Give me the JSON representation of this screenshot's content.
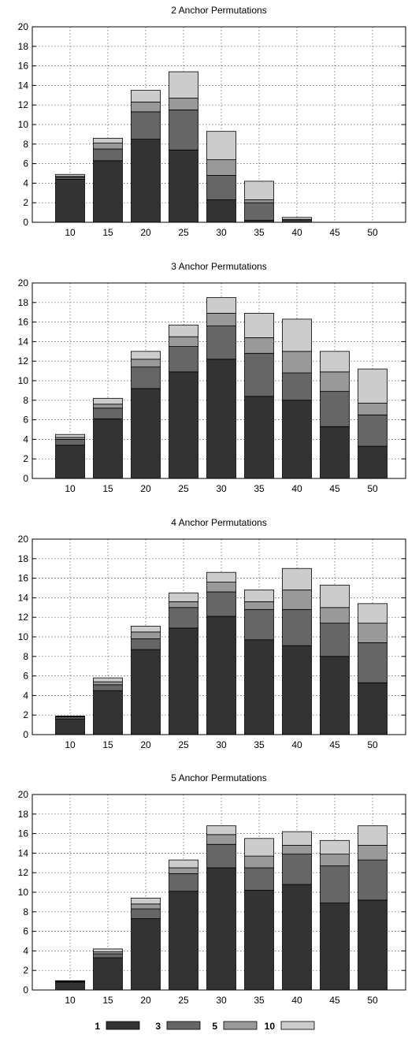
{
  "chart_data": [
    {
      "type": "bar",
      "stacked": true,
      "title": "2 Anchor Permutations",
      "categories": [
        "10",
        "15",
        "20",
        "25",
        "30",
        "35",
        "40",
        "45",
        "50"
      ],
      "ylim": [
        0,
        20
      ],
      "yticks": [
        "0",
        "2",
        "4",
        "6",
        "8",
        "10",
        "12",
        "14",
        "16",
        "18",
        "20"
      ],
      "grid": true,
      "series": [
        {
          "name": "1",
          "color": "#333333",
          "values": [
            4.4,
            6.3,
            8.5,
            7.4,
            2.3,
            0.2,
            0.05,
            0,
            0
          ]
        },
        {
          "name": "3",
          "color": "#666666",
          "values": [
            0.2,
            1.2,
            2.8,
            4.1,
            2.5,
            1.8,
            0.15,
            0,
            0
          ]
        },
        {
          "name": "5",
          "color": "#999999",
          "values": [
            0.1,
            0.6,
            1.0,
            1.2,
            1.6,
            0.3,
            0.1,
            0,
            0
          ]
        },
        {
          "name": "10",
          "color": "#cccccc",
          "values": [
            0.2,
            0.5,
            1.2,
            2.7,
            2.9,
            1.9,
            0.2,
            0,
            0
          ]
        }
      ]
    },
    {
      "type": "bar",
      "stacked": true,
      "title": "3 Anchor Permutations",
      "categories": [
        "10",
        "15",
        "20",
        "25",
        "30",
        "35",
        "40",
        "45",
        "50"
      ],
      "ylim": [
        0,
        20
      ],
      "yticks": [
        "0",
        "2",
        "4",
        "6",
        "8",
        "10",
        "12",
        "14",
        "16",
        "18",
        "20"
      ],
      "grid": true,
      "series": [
        {
          "name": "1",
          "color": "#333333",
          "values": [
            3.4,
            6.1,
            9.2,
            10.9,
            12.2,
            8.4,
            8.0,
            5.3,
            3.3
          ]
        },
        {
          "name": "3",
          "color": "#666666",
          "values": [
            0.6,
            1.1,
            2.2,
            2.6,
            3.4,
            4.4,
            2.8,
            3.6,
            3.2
          ]
        },
        {
          "name": "5",
          "color": "#999999",
          "values": [
            0.2,
            0.4,
            0.8,
            1.0,
            1.3,
            1.6,
            2.2,
            2.0,
            1.2
          ]
        },
        {
          "name": "10",
          "color": "#cccccc",
          "values": [
            0.3,
            0.6,
            0.8,
            1.2,
            1.6,
            2.5,
            3.3,
            2.1,
            3.5
          ]
        }
      ]
    },
    {
      "type": "bar",
      "stacked": true,
      "title": "4 Anchor Permutations",
      "categories": [
        "10",
        "15",
        "20",
        "25",
        "30",
        "35",
        "40",
        "45",
        "50"
      ],
      "ylim": [
        0,
        20
      ],
      "yticks": [
        "0",
        "2",
        "4",
        "6",
        "8",
        "10",
        "12",
        "14",
        "16",
        "18",
        "20"
      ],
      "grid": true,
      "series": [
        {
          "name": "1",
          "color": "#333333",
          "values": [
            1.6,
            4.5,
            8.7,
            10.9,
            12.1,
            9.7,
            9.1,
            8.0,
            5.3
          ]
        },
        {
          "name": "3",
          "color": "#666666",
          "values": [
            0.2,
            0.6,
            1.1,
            2.1,
            2.5,
            3.1,
            3.7,
            3.4,
            4.1
          ]
        },
        {
          "name": "5",
          "color": "#999999",
          "values": [
            0.05,
            0.3,
            0.7,
            0.6,
            1.0,
            0.8,
            2.0,
            1.6,
            2.0
          ]
        },
        {
          "name": "10",
          "color": "#cccccc",
          "values": [
            0.05,
            0.4,
            0.6,
            0.9,
            1.0,
            1.2,
            2.2,
            2.3,
            2.0
          ]
        }
      ]
    },
    {
      "type": "bar",
      "stacked": true,
      "title": "5 Anchor Permutations",
      "categories": [
        "10",
        "15",
        "20",
        "25",
        "30",
        "35",
        "40",
        "45",
        "50"
      ],
      "ylim": [
        0,
        20
      ],
      "yticks": [
        "0",
        "2",
        "4",
        "6",
        "8",
        "10",
        "12",
        "14",
        "16",
        "18",
        "20"
      ],
      "grid": true,
      "series": [
        {
          "name": "1",
          "color": "#333333",
          "values": [
            0.8,
            3.3,
            7.3,
            10.1,
            12.5,
            10.2,
            10.8,
            8.9,
            9.2
          ]
        },
        {
          "name": "3",
          "color": "#666666",
          "values": [
            0.1,
            0.4,
            1.0,
            1.8,
            2.4,
            2.3,
            3.1,
            3.8,
            4.1
          ]
        },
        {
          "name": "5",
          "color": "#999999",
          "values": [
            0.02,
            0.2,
            0.5,
            0.6,
            1.0,
            1.2,
            0.9,
            1.2,
            1.5
          ]
        },
        {
          "name": "10",
          "color": "#cccccc",
          "values": [
            0.03,
            0.3,
            0.6,
            0.8,
            0.9,
            1.8,
            1.4,
            1.4,
            2.0
          ]
        }
      ]
    }
  ],
  "legend": {
    "placement": "bottom-center",
    "items": [
      {
        "label": "1",
        "color": "#333333"
      },
      {
        "label": "3",
        "color": "#666666"
      },
      {
        "label": "5",
        "color": "#999999"
      },
      {
        "label": "10",
        "color": "#cccccc"
      }
    ]
  }
}
